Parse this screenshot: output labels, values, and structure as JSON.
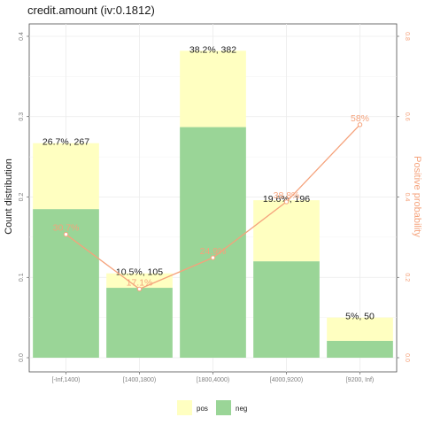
{
  "chart_data": {
    "type": "bar",
    "title": "credit.amount  (iv:0.1812)",
    "ylabel": "Count distribution",
    "y2label": "Positive probability",
    "ylim": [
      0,
      0.4
    ],
    "y2lim": [
      0,
      0.8
    ],
    "yticks": [
      "0.0",
      "0.1",
      "0.2",
      "0.3",
      "0.4"
    ],
    "y2ticks": [
      "0.0",
      "0.2",
      "0.4",
      "0.6",
      "0.8"
    ],
    "stacked": true,
    "grid": true,
    "legend_position": "bottom",
    "categories": [
      "[-Inf,1400)",
      "[1400,1800)",
      "[1800,4000)",
      "[4000,9200)",
      "[9200, Inf)"
    ],
    "series": [
      {
        "name": "neg",
        "color": "#9ad597",
        "values": [
          0.185,
          0.087,
          0.287,
          0.12,
          0.021
        ]
      },
      {
        "name": "pos",
        "color": "#ffffc1",
        "values": [
          0.082,
          0.018,
          0.095,
          0.076,
          0.029
        ]
      }
    ],
    "bar_labels": [
      "26.7%, 267",
      "10.5%, 105",
      "38.2%, 382",
      "19.6%, 196",
      "5%, 50"
    ],
    "line": {
      "color": "#f5a27b",
      "values": [
        0.307,
        0.171,
        0.249,
        0.388,
        0.58
      ],
      "labels": [
        "30.7%",
        "17.1%",
        "24.9%",
        "38.8%",
        "58%"
      ]
    },
    "legend": [
      {
        "name": "pos",
        "color": "#ffffc1"
      },
      {
        "name": "neg",
        "color": "#9ad597"
      }
    ]
  }
}
